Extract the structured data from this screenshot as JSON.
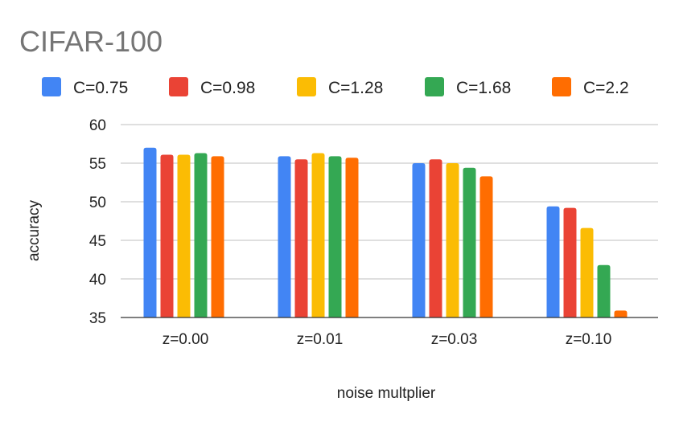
{
  "chart_data": {
    "type": "bar",
    "title": "CIFAR-100",
    "xlabel": "noise multplier",
    "ylabel": "accuracy",
    "ylim": [
      35,
      60
    ],
    "yticks": [
      35,
      40,
      45,
      50,
      55,
      60
    ],
    "grid": true,
    "legend_position": "top",
    "categories": [
      "z=0.00",
      "z=0.01",
      "z=0.03",
      "z=0.10"
    ],
    "series": [
      {
        "name": "C=0.75",
        "color": "#4285f4",
        "values": [
          57.0,
          55.9,
          55.0,
          49.4
        ]
      },
      {
        "name": "C=0.98",
        "color": "#ea4335",
        "values": [
          56.1,
          55.5,
          55.5,
          49.2
        ]
      },
      {
        "name": "C=1.28",
        "color": "#fbbc04",
        "values": [
          56.1,
          56.3,
          55.0,
          46.6
        ]
      },
      {
        "name": "C=1.68",
        "color": "#34a853",
        "values": [
          56.3,
          55.9,
          54.4,
          41.8
        ]
      },
      {
        "name": "C=2.2",
        "color": "#ff6d01",
        "values": [
          55.9,
          55.7,
          53.3,
          35.9
        ]
      }
    ]
  }
}
